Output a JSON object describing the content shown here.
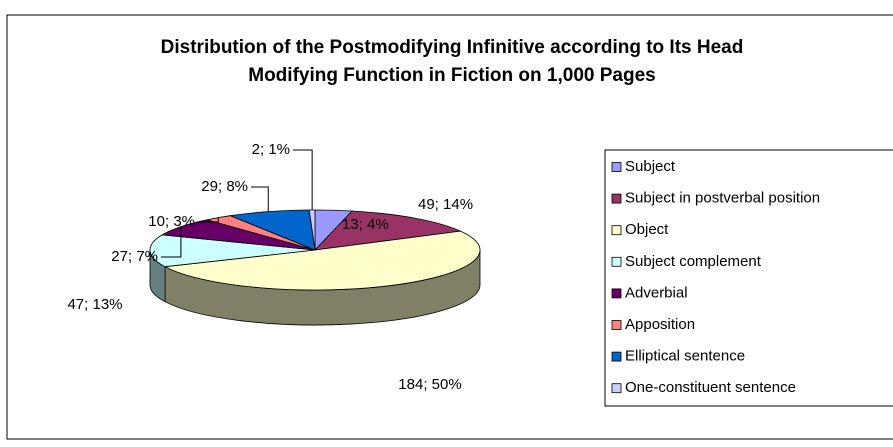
{
  "chart_data": {
    "type": "pie3d",
    "title_lines": [
      "Distribution of the Postmodifying Infinitive according to Its Head",
      "Modifying Function in Fiction on 1,000 Pages"
    ],
    "categories": [
      "Subject",
      "Subject in postverbal position",
      "Object",
      "Subject complement",
      "Adverbial",
      "Apposition",
      "Elliptical  sentence",
      "One-constituent sentence"
    ],
    "values": [
      13,
      49,
      184,
      47,
      27,
      10,
      29,
      2
    ],
    "value_labels": [
      "13; 4%",
      "49; 14%",
      "184; 50%",
      "47; 13%",
      "27; 7%",
      "10; 3%",
      "29; 8%",
      "2; 1%"
    ],
    "colors": [
      "#9999ff",
      "#993366",
      "#ffffcc",
      "#ccffff",
      "#660066",
      "#ff8080",
      "#0066cc",
      "#ccccff"
    ],
    "legend": "right"
  }
}
